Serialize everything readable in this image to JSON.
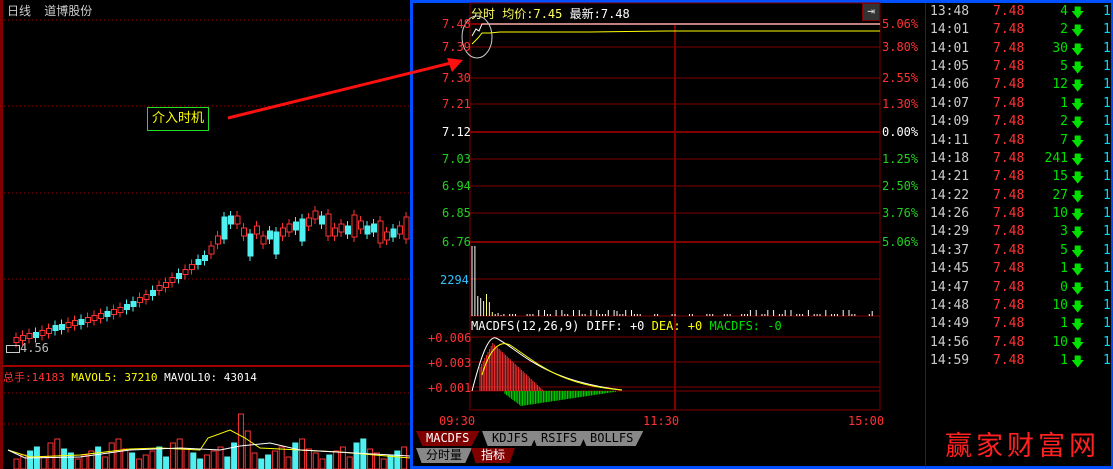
{
  "left_panel": {
    "period": "日线",
    "stock_name": "道博股份",
    "low_price_label": "4.56",
    "annotation": "介入时机",
    "volume_header": {
      "total_label": "总手:",
      "total": "14183",
      "mavol5_label": "MAVOL5:",
      "mavol5": "37210",
      "mavol10_label": "MAVOL10:",
      "mavol10": "43014"
    }
  },
  "intraday": {
    "header": {
      "mode": "分时",
      "avg_label": "均价:",
      "avg": "7.45",
      "last_label": "最新:",
      "last": "7.48"
    },
    "price_ticks": [
      "7.48",
      "7.39",
      "7.30",
      "7.21",
      "7.12",
      "7.03",
      "6.94",
      "6.85",
      "6.76"
    ],
    "pct_ticks": [
      "5.06%",
      "3.80%",
      "2.55%",
      "1.30%",
      "0.00%",
      "1.25%",
      "2.50%",
      "3.76%",
      "5.06%"
    ],
    "volume_tick": "2294",
    "macd_header": {
      "name": "MACDFS(12,26,9)",
      "diff": "DIFF: +0",
      "dea": "DEA: +0",
      "macd": "MACDFS: -0"
    },
    "macd_ticks": [
      "+0.006",
      "+0.003",
      "+0.001"
    ],
    "time_ticks": [
      "09:30",
      "11:30",
      "15:00"
    ],
    "indicator_tabs": [
      "MACDFS",
      "KDJFS",
      "RSIFS",
      "BOLLFS"
    ],
    "bottom_tabs": [
      "分时量",
      "指标"
    ],
    "colors": {
      "up": "#ff3232",
      "down": "#00e000",
      "grid": "#800000",
      "avg_line": "#ffff00",
      "price_line": "#ffffff",
      "border": "#0050ff"
    }
  },
  "trades": [
    {
      "time": "13:48",
      "price": "7.48",
      "vol": "4",
      "count": "1"
    },
    {
      "time": "14:01",
      "price": "7.48",
      "vol": "2",
      "count": "1"
    },
    {
      "time": "14:01",
      "price": "7.48",
      "vol": "30",
      "count": "1"
    },
    {
      "time": "14:05",
      "price": "7.48",
      "vol": "5",
      "count": "1"
    },
    {
      "time": "14:06",
      "price": "7.48",
      "vol": "12",
      "count": "1"
    },
    {
      "time": "14:07",
      "price": "7.48",
      "vol": "1",
      "count": "1"
    },
    {
      "time": "14:09",
      "price": "7.48",
      "vol": "2",
      "count": "1"
    },
    {
      "time": "14:11",
      "price": "7.48",
      "vol": "7",
      "count": "1"
    },
    {
      "time": "14:18",
      "price": "7.48",
      "vol": "241",
      "count": "1"
    },
    {
      "time": "14:21",
      "price": "7.48",
      "vol": "15",
      "count": "1"
    },
    {
      "time": "14:22",
      "price": "7.48",
      "vol": "27",
      "count": "1"
    },
    {
      "time": "14:26",
      "price": "7.48",
      "vol": "10",
      "count": "1"
    },
    {
      "time": "14:29",
      "price": "7.48",
      "vol": "3",
      "count": "1"
    },
    {
      "time": "14:37",
      "price": "7.48",
      "vol": "5",
      "count": "1"
    },
    {
      "time": "14:45",
      "price": "7.48",
      "vol": "1",
      "count": "1"
    },
    {
      "time": "14:47",
      "price": "7.48",
      "vol": "0",
      "count": "1"
    },
    {
      "time": "14:48",
      "price": "7.48",
      "vol": "10",
      "count": "1"
    },
    {
      "time": "14:49",
      "price": "7.48",
      "vol": "1",
      "count": "1"
    },
    {
      "time": "14:56",
      "price": "7.48",
      "vol": "10",
      "count": "1"
    },
    {
      "time": "14:59",
      "price": "7.48",
      "vol": "1",
      "count": "1"
    }
  ],
  "watermark": "赢家财富网"
}
